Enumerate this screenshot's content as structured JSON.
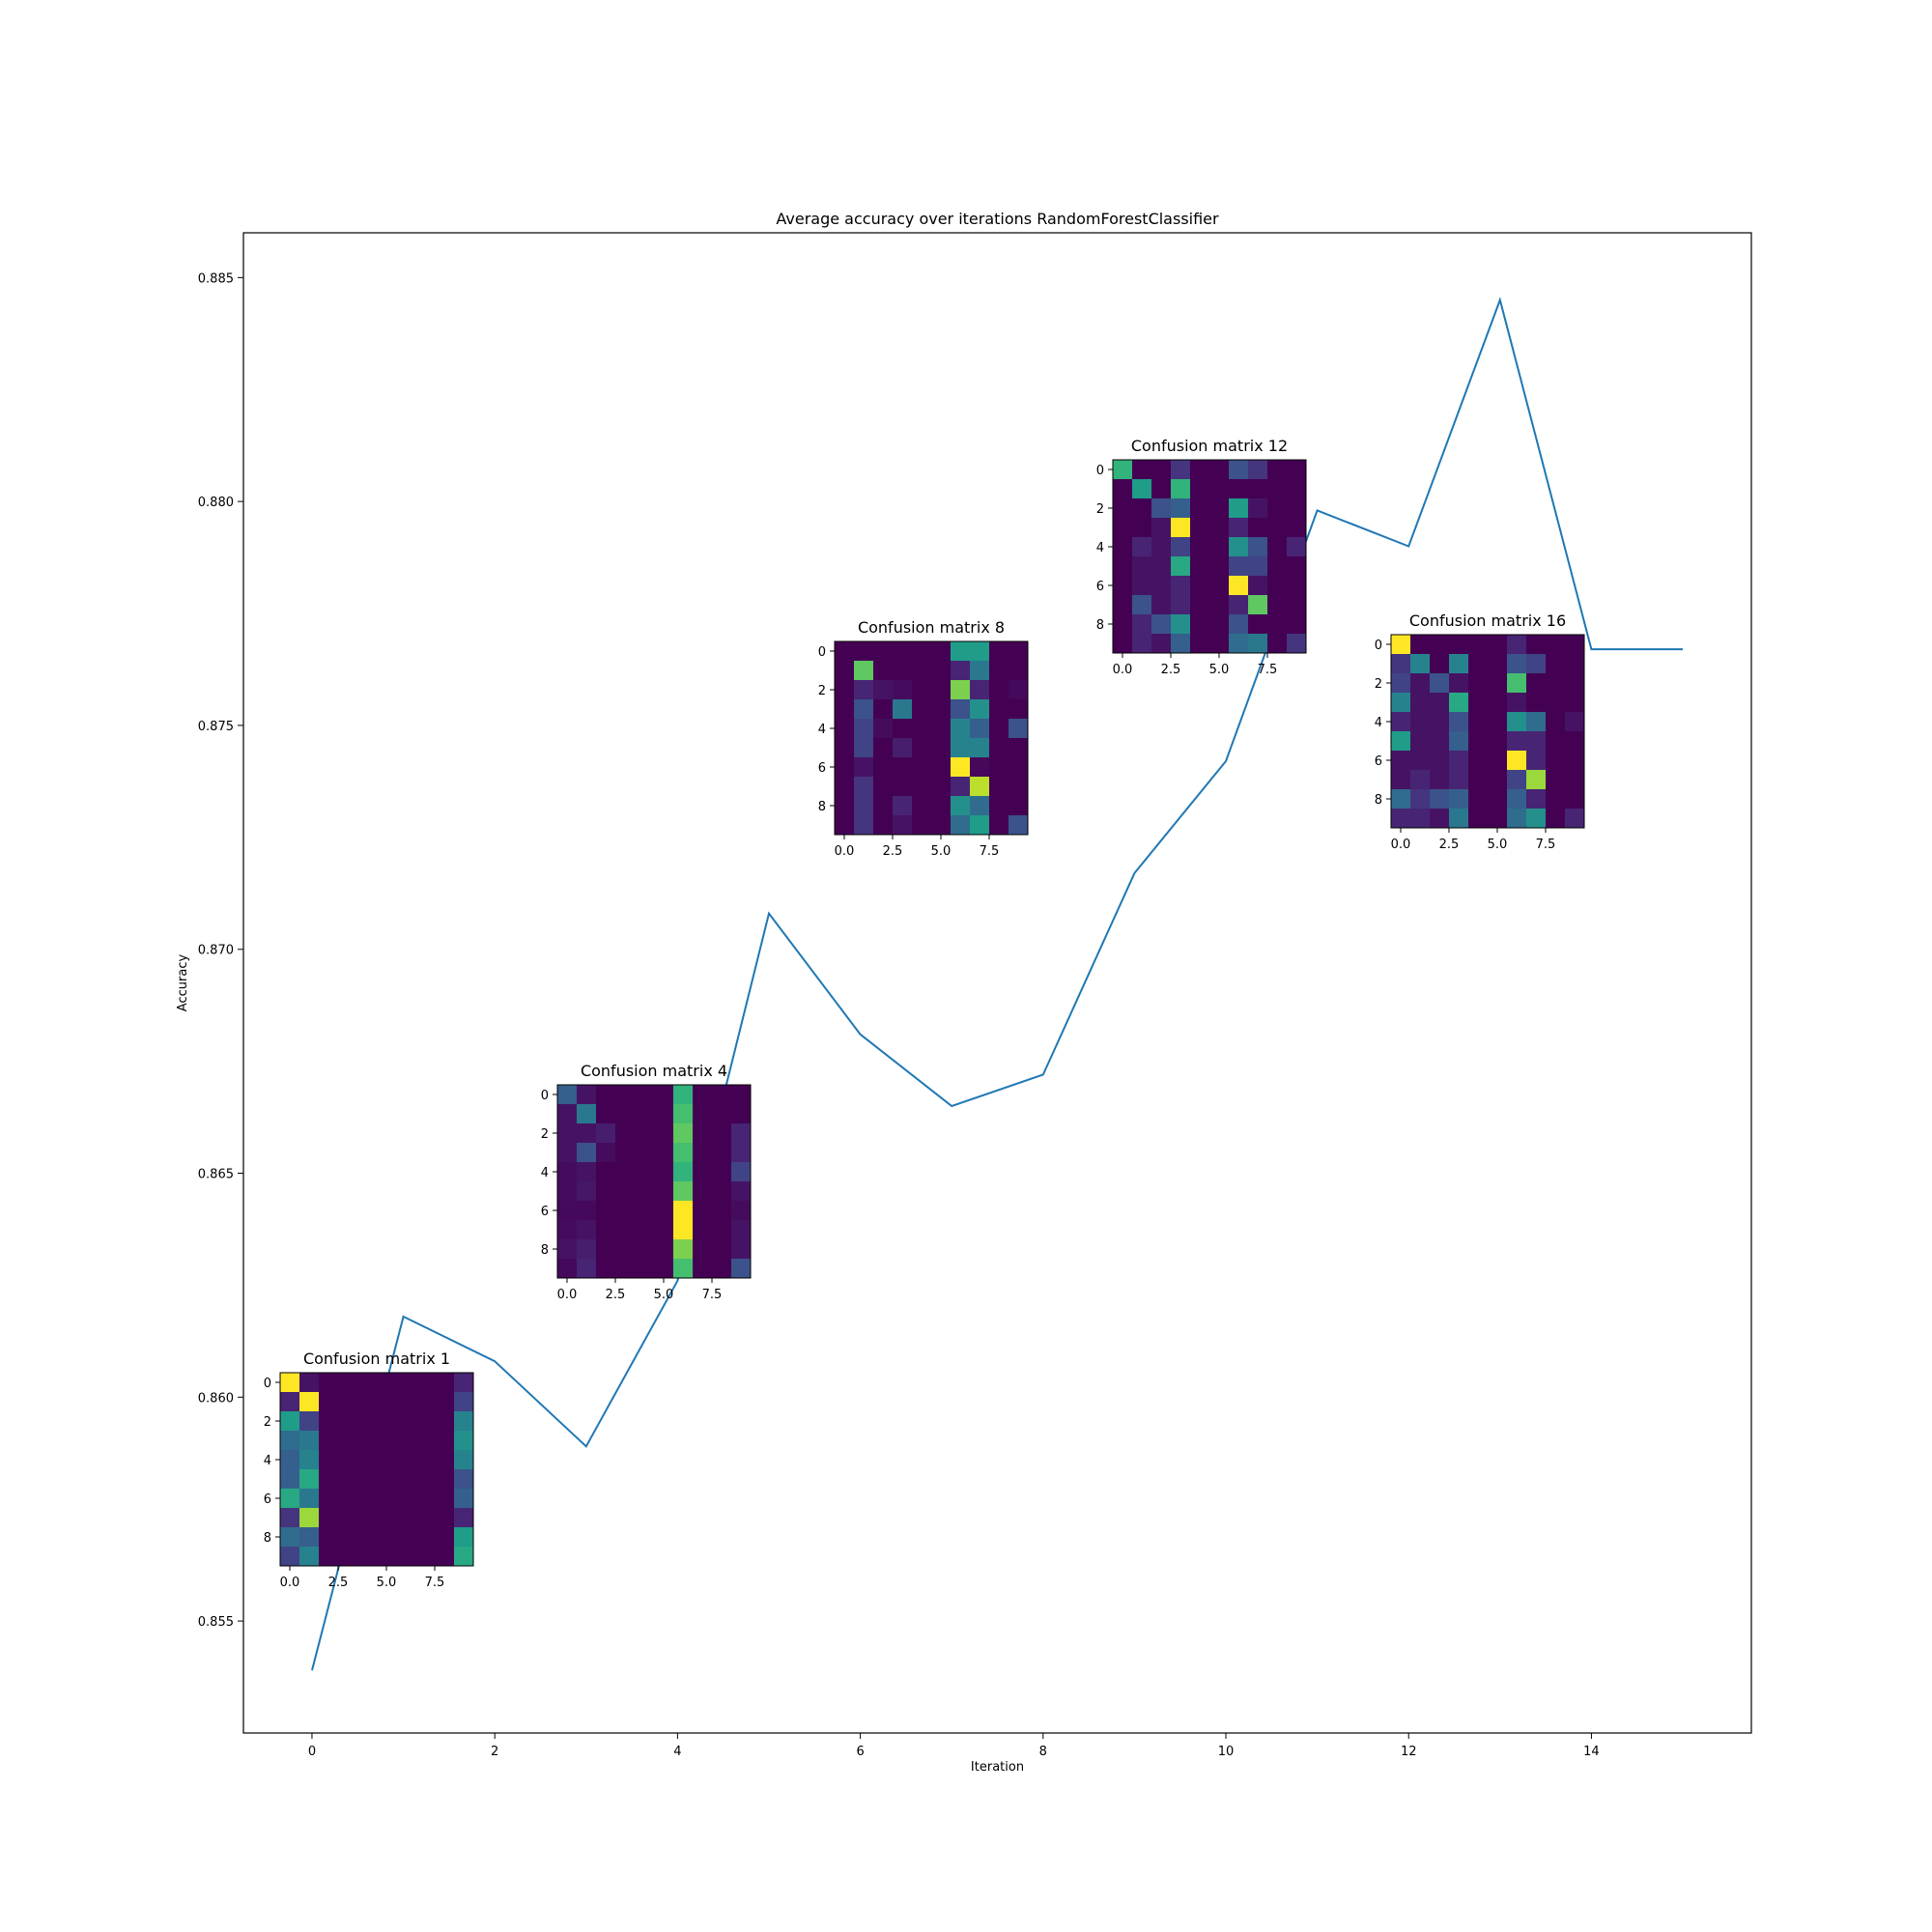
{
  "chart_data": [
    {
      "type": "line",
      "title": "Average accuracy over iterations RandomForestClassifier",
      "xlabel": "Iteration",
      "ylabel": "Accuracy",
      "xlim": [
        -0.75,
        15.75
      ],
      "ylim": [
        0.8525,
        0.886
      ],
      "x_ticks": [
        0,
        2,
        4,
        6,
        8,
        10,
        12,
        14
      ],
      "y_ticks": [
        0.855,
        0.86,
        0.865,
        0.87,
        0.875,
        0.88,
        0.885
      ],
      "y_tick_labels": [
        "0.855",
        "0.860",
        "0.865",
        "0.870",
        "0.875",
        "0.880",
        "0.885"
      ],
      "grid": false,
      "line_color": "#1f77b4",
      "x": [
        0,
        1,
        2,
        3,
        4,
        5,
        6,
        7,
        8,
        9,
        10,
        11,
        12,
        13,
        14,
        15
      ],
      "y": [
        0.8539,
        0.8618,
        0.8608,
        0.8589,
        0.8626,
        0.8708,
        0.8681,
        0.8665,
        0.8672,
        0.8717,
        0.8742,
        0.8798,
        0.879,
        0.8845,
        0.8767,
        0.8767
      ]
    },
    {
      "type": "heatmap",
      "title": "Confusion matrix 1",
      "colormap": "viridis",
      "x_ticks": [
        "0.0",
        "2.5",
        "5.0",
        "7.5"
      ],
      "y_ticks": [
        "0",
        "2",
        "4",
        "6",
        "8"
      ],
      "values": [
        [
          1.0,
          0.05,
          0,
          0,
          0,
          0,
          0,
          0,
          0,
          0.1
        ],
        [
          0.1,
          1.0,
          0,
          0,
          0,
          0,
          0,
          0,
          0,
          0.2
        ],
        [
          0.55,
          0.2,
          0,
          0,
          0,
          0,
          0,
          0,
          0,
          0.45
        ],
        [
          0.35,
          0.4,
          0,
          0,
          0,
          0,
          0,
          0,
          0,
          0.5
        ],
        [
          0.3,
          0.45,
          0,
          0,
          0,
          0,
          0,
          0,
          0,
          0.45
        ],
        [
          0.3,
          0.6,
          0,
          0,
          0,
          0,
          0,
          0,
          0,
          0.25
        ],
        [
          0.6,
          0.4,
          0,
          0,
          0,
          0,
          0,
          0,
          0,
          0.3
        ],
        [
          0.15,
          0.85,
          0,
          0,
          0,
          0,
          0,
          0,
          0,
          0.1
        ],
        [
          0.35,
          0.3,
          0,
          0,
          0,
          0,
          0,
          0,
          0,
          0.55
        ],
        [
          0.2,
          0.45,
          0,
          0,
          0,
          0,
          0,
          0,
          0,
          0.6
        ]
      ]
    },
    {
      "type": "heatmap",
      "title": "Confusion matrix 4",
      "colormap": "viridis",
      "x_ticks": [
        "0.0",
        "2.5",
        "5.0",
        "7.5"
      ],
      "y_ticks": [
        "0",
        "2",
        "4",
        "6",
        "8"
      ],
      "values": [
        [
          0.3,
          0.05,
          0,
          0,
          0,
          0,
          0.65,
          0,
          0,
          0
        ],
        [
          0.05,
          0.4,
          0,
          0,
          0,
          0,
          0.7,
          0,
          0,
          0
        ],
        [
          0.05,
          0.05,
          0.08,
          0,
          0,
          0,
          0.75,
          0,
          0,
          0.1
        ],
        [
          0.05,
          0.25,
          0.03,
          0,
          0,
          0,
          0.7,
          0,
          0,
          0.1
        ],
        [
          0.03,
          0.05,
          0,
          0,
          0,
          0,
          0.65,
          0,
          0,
          0.2
        ],
        [
          0.03,
          0.06,
          0,
          0,
          0,
          0,
          0.75,
          0,
          0,
          0.05
        ],
        [
          0.02,
          0.02,
          0,
          0,
          0,
          0,
          1.0,
          0,
          0,
          0.03
        ],
        [
          0.03,
          0.05,
          0,
          0,
          0,
          0,
          1.0,
          0,
          0,
          0.05
        ],
        [
          0.05,
          0.08,
          0,
          0,
          0,
          0,
          0.8,
          0,
          0,
          0.05
        ],
        [
          0.02,
          0.1,
          0,
          0,
          0,
          0,
          0.7,
          0,
          0,
          0.25
        ]
      ]
    },
    {
      "type": "heatmap",
      "title": "Confusion matrix 8",
      "colormap": "viridis",
      "x_ticks": [
        "0.0",
        "2.5",
        "5.0",
        "7.5"
      ],
      "y_ticks": [
        "0",
        "2",
        "4",
        "6",
        "8"
      ],
      "values": [
        [
          0,
          0,
          0,
          0,
          0,
          0,
          0.55,
          0.55,
          0,
          0
        ],
        [
          0,
          0.75,
          0,
          0,
          0,
          0,
          0.1,
          0.4,
          0,
          0
        ],
        [
          0,
          0.1,
          0.05,
          0.03,
          0,
          0,
          0.8,
          0.1,
          0,
          0.02
        ],
        [
          0,
          0.25,
          0,
          0.4,
          0,
          0,
          0.25,
          0.5,
          0,
          0
        ],
        [
          0,
          0.2,
          0.03,
          0,
          0,
          0,
          0.45,
          0.3,
          0,
          0.25
        ],
        [
          0,
          0.2,
          0,
          0.08,
          0,
          0,
          0.45,
          0.45,
          0,
          0
        ],
        [
          0,
          0.05,
          0,
          0,
          0,
          0,
          1.0,
          0.02,
          0,
          0
        ],
        [
          0,
          0.15,
          0,
          0,
          0,
          0,
          0.1,
          0.9,
          0,
          0
        ],
        [
          0,
          0.15,
          0,
          0.1,
          0,
          0,
          0.5,
          0.35,
          0,
          0
        ],
        [
          0,
          0.15,
          0,
          0.05,
          0,
          0,
          0.35,
          0.55,
          0,
          0.25
        ]
      ]
    },
    {
      "type": "heatmap",
      "title": "Confusion matrix 12",
      "colormap": "viridis",
      "x_ticks": [
        "0.0",
        "2.5",
        "5.0",
        "7.5"
      ],
      "y_ticks": [
        "0",
        "2",
        "4",
        "6",
        "8"
      ],
      "values": [
        [
          0.65,
          0,
          0,
          0.15,
          0,
          0,
          0.25,
          0.15,
          0,
          0
        ],
        [
          0,
          0.55,
          0,
          0.65,
          0,
          0,
          0,
          0,
          0,
          0
        ],
        [
          0,
          0,
          0.25,
          0.3,
          0,
          0,
          0.55,
          0.05,
          0,
          0
        ],
        [
          0,
          0,
          0.05,
          1.0,
          0,
          0,
          0.1,
          0,
          0,
          0
        ],
        [
          0,
          0.1,
          0.05,
          0.2,
          0,
          0,
          0.5,
          0.25,
          0,
          0.1
        ],
        [
          0,
          0.05,
          0.05,
          0.6,
          0,
          0,
          0.2,
          0.2,
          0,
          0
        ],
        [
          0,
          0.05,
          0.05,
          0.1,
          0,
          0,
          1.0,
          0.05,
          0,
          0
        ],
        [
          0,
          0.25,
          0.05,
          0.1,
          0,
          0,
          0.1,
          0.75,
          0,
          0
        ],
        [
          0,
          0.1,
          0.25,
          0.5,
          0,
          0,
          0.25,
          0,
          0,
          0
        ],
        [
          0,
          0.1,
          0.05,
          0.3,
          0,
          0,
          0.35,
          0.4,
          0,
          0.15
        ]
      ]
    },
    {
      "type": "heatmap",
      "title": "Confusion matrix 16",
      "colormap": "viridis",
      "x_ticks": [
        "0.0",
        "2.5",
        "5.0",
        "7.5"
      ],
      "y_ticks": [
        "0",
        "2",
        "4",
        "6",
        "8"
      ],
      "values": [
        [
          1.0,
          0,
          0,
          0,
          0,
          0,
          0.1,
          0,
          0,
          0
        ],
        [
          0.15,
          0.45,
          0,
          0.45,
          0,
          0,
          0.25,
          0.2,
          0,
          0
        ],
        [
          0.2,
          0.05,
          0.25,
          0.05,
          0,
          0,
          0.7,
          0,
          0,
          0
        ],
        [
          0.45,
          0.05,
          0.05,
          0.6,
          0,
          0,
          0.05,
          0,
          0,
          0
        ],
        [
          0.1,
          0.05,
          0.05,
          0.25,
          0,
          0,
          0.5,
          0.35,
          0,
          0.05
        ],
        [
          0.55,
          0.05,
          0.05,
          0.3,
          0,
          0,
          0.1,
          0.1,
          0,
          0
        ],
        [
          0.05,
          0.05,
          0.05,
          0.1,
          0,
          0,
          1.0,
          0.1,
          0,
          0
        ],
        [
          0.05,
          0.1,
          0.05,
          0.1,
          0,
          0,
          0.2,
          0.85,
          0,
          0
        ],
        [
          0.35,
          0.15,
          0.25,
          0.3,
          0,
          0,
          0.3,
          0.1,
          0,
          0
        ],
        [
          0.1,
          0.1,
          0.05,
          0.4,
          0,
          0,
          0.35,
          0.5,
          0,
          0.1
        ]
      ]
    }
  ]
}
